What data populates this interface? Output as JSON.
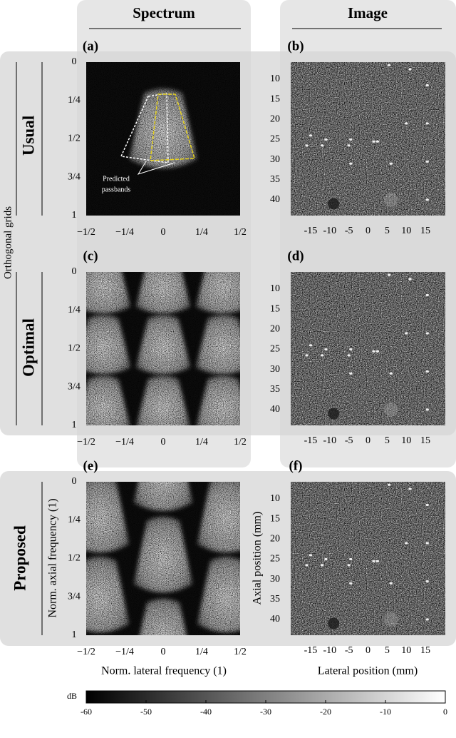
{
  "columns": [
    "Spectrum",
    "Image"
  ],
  "group_label": "Orthogonal grids",
  "rows": [
    {
      "label": "Usual",
      "panels": [
        "(a)",
        "(b)"
      ]
    },
    {
      "label": "Optimal",
      "panels": [
        "(c)",
        "(d)"
      ]
    },
    {
      "label": "Proposed",
      "panels": [
        "(e)",
        "(f)"
      ]
    }
  ],
  "annotation": [
    "Predicted",
    "passbands"
  ],
  "spectrum_axes": {
    "ylabel": "Norm. axial frequency (1)",
    "xlabel": "Norm. lateral frequency (1)",
    "yticks": [
      "0",
      "1/4",
      "1/2",
      "3/4",
      "1"
    ],
    "xticks": [
      "−1/2",
      "−1/4",
      "0",
      "1/4",
      "1/2"
    ]
  },
  "image_axes": {
    "ylabel": "Axial position (mm)",
    "xlabel": "Lateral position (mm)",
    "yticks": [
      10,
      15,
      20,
      25,
      30,
      35,
      40
    ],
    "xticks": [
      -15,
      -10,
      -5,
      0,
      5,
      10,
      15
    ]
  },
  "colorbar": {
    "label": "dB",
    "ticks": [
      -60,
      -50,
      -40,
      -30,
      -20,
      -10,
      0
    ]
  }
}
